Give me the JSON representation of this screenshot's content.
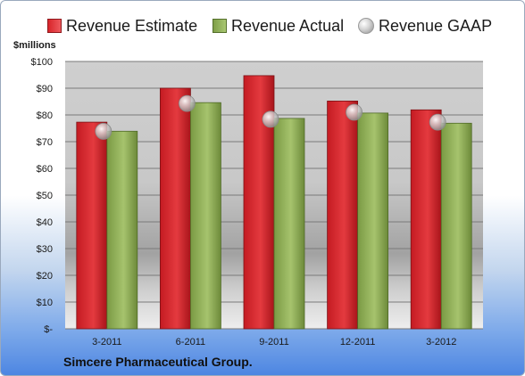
{
  "chart_data": {
    "type": "bar",
    "title": "",
    "unit_label": "$millions",
    "company": "Simcere Pharmaceutical Group.",
    "categories": [
      "3-2011",
      "6-2011",
      "9-2011",
      "12-2011",
      "3-2012"
    ],
    "series": [
      {
        "name": "Revenue Estimate",
        "kind": "bar",
        "color": "#d8242a",
        "values": [
          77.3,
          90,
          94.7,
          85.2,
          81.9
        ]
      },
      {
        "name": "Revenue Actual",
        "kind": "bar",
        "color": "#8fb05a",
        "values": [
          73.9,
          84.6,
          78.7,
          80.7,
          76.9
        ]
      },
      {
        "name": "Revenue GAAP",
        "kind": "marker",
        "color": "#c8c8c8",
        "values": [
          73.9,
          84.3,
          78.4,
          81.0,
          77.3
        ]
      }
    ],
    "y_ticks": [
      "$-",
      "$10",
      "$20",
      "$30",
      "$40",
      "$50",
      "$60",
      "$70",
      "$80",
      "$90",
      "$100"
    ],
    "ylim": [
      0,
      100
    ],
    "grid": true,
    "legend_position": "top"
  }
}
